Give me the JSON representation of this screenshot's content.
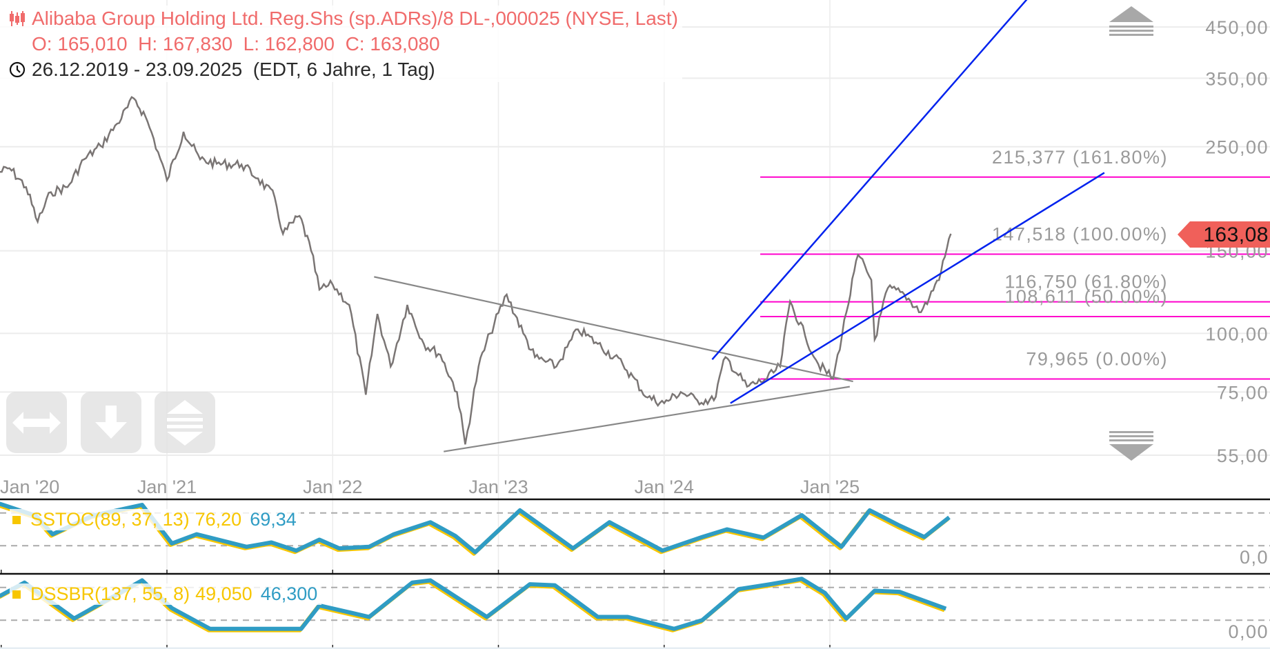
{
  "header": {
    "title": "Alibaba Group Holding Ltd. Reg.Shs (sp.ADRs)/8 DL-,000025 (NYSE, Last)",
    "ohlc": "O: 165,010  H: 167,830  L: 162,800  C: 163,080",
    "range": "26.12.2019 - 23.09.2025  (EDT, 6 Jahre, 1 Tag)",
    "icon": "candlestick-icon",
    "clock_icon": "clock-icon"
  },
  "colors": {
    "accent": "#f06b6b",
    "price": "#7a7574",
    "fib": "#ff00cc",
    "trend": "#0022ee",
    "ind_main": "#2f9cc4",
    "ind_signal": "#f7c600",
    "tag": "#f0605a"
  },
  "last_price_tag": "163,08",
  "nav_buttons": [
    {
      "name": "pan-horizontal",
      "icon": "left-right-arrow-icon"
    },
    {
      "name": "scroll-down",
      "icon": "down-arrow-icon"
    },
    {
      "name": "scale-vertical",
      "icon": "up-down-arrows-icon"
    }
  ],
  "chart_data": {
    "type": "line",
    "title": "Alibaba Group Holding Ltd. Reg.Shs (sp.ADRs)/8 DL-,000025 (NYSE, Last)",
    "y_scale": "log",
    "ylim": [
      55,
      450
    ],
    "y_ticks": [
      450,
      350,
      250,
      150,
      100,
      75,
      55
    ],
    "y_tick_labels": [
      "450,00",
      "350,00",
      "250,00",
      "150,00",
      "100,00",
      "75,00",
      "55,00"
    ],
    "x_ticks": [
      2020,
      2021,
      2022,
      2023,
      2024,
      2025
    ],
    "x_tick_labels": [
      "Jan '20",
      "Jan '21",
      "Jan '22",
      "Jan '23",
      "Jan '24",
      "Jan '25"
    ],
    "grid": true,
    "price_series": [
      [
        2019.98,
        220
      ],
      [
        2020.05,
        225
      ],
      [
        2020.15,
        205
      ],
      [
        2020.22,
        173
      ],
      [
        2020.3,
        200
      ],
      [
        2020.4,
        205
      ],
      [
        2020.5,
        235
      ],
      [
        2020.6,
        251
      ],
      [
        2020.7,
        280
      ],
      [
        2020.8,
        317
      ],
      [
        2020.87,
        290
      ],
      [
        2020.92,
        260
      ],
      [
        2021.0,
        212
      ],
      [
        2021.1,
        269
      ],
      [
        2021.2,
        235
      ],
      [
        2021.3,
        230
      ],
      [
        2021.45,
        229
      ],
      [
        2021.55,
        214
      ],
      [
        2021.65,
        195
      ],
      [
        2021.7,
        163
      ],
      [
        2021.8,
        178
      ],
      [
        2021.87,
        150
      ],
      [
        2021.92,
        124
      ],
      [
        2022.0,
        127
      ],
      [
        2022.1,
        115
      ],
      [
        2022.2,
        74
      ],
      [
        2022.27,
        110
      ],
      [
        2022.35,
        85
      ],
      [
        2022.45,
        115
      ],
      [
        2022.55,
        95
      ],
      [
        2022.65,
        90
      ],
      [
        2022.75,
        75
      ],
      [
        2022.8,
        58
      ],
      [
        2022.88,
        85
      ],
      [
        2022.95,
        100
      ],
      [
        2023.05,
        121
      ],
      [
        2023.15,
        100
      ],
      [
        2023.22,
        89
      ],
      [
        2023.35,
        85
      ],
      [
        2023.48,
        102
      ],
      [
        2023.6,
        95
      ],
      [
        2023.75,
        86
      ],
      [
        2023.9,
        73
      ],
      [
        2024.0,
        71
      ],
      [
        2024.1,
        75
      ],
      [
        2024.2,
        72
      ],
      [
        2024.3,
        72
      ],
      [
        2024.37,
        89
      ],
      [
        2024.5,
        77
      ],
      [
        2024.62,
        80
      ],
      [
        2024.7,
        85
      ],
      [
        2024.76,
        117
      ],
      [
        2024.85,
        99
      ],
      [
        2024.93,
        86
      ],
      [
        2025.02,
        80
      ],
      [
        2025.1,
        111
      ],
      [
        2025.17,
        147
      ],
      [
        2025.25,
        130
      ],
      [
        2025.27,
        97
      ],
      [
        2025.35,
        125
      ],
      [
        2025.45,
        121
      ],
      [
        2025.55,
        111
      ],
      [
        2025.6,
        119
      ],
      [
        2025.67,
        135
      ],
      [
        2025.73,
        163.08
      ]
    ],
    "fib_levels": [
      {
        "value": 215.377,
        "label": "215,377 (161.80%)"
      },
      {
        "value": 147.518,
        "label": "147,518 (100.00%)"
      },
      {
        "value": 116.75,
        "label": "116,750 (61.80%)"
      },
      {
        "value": 108.611,
        "label": "108,611 (50.00%)"
      },
      {
        "value": 79.965,
        "label": "79,965 (0.00%)"
      }
    ],
    "fib_start": 2024.58,
    "trendlines": [
      {
        "name": "triangle-upper",
        "color": "gray",
        "from": [
          2022.25,
          132
        ],
        "to": [
          2025.14,
          79
        ]
      },
      {
        "name": "triangle-lower",
        "color": "gray",
        "from": [
          2022.67,
          56
        ],
        "to": [
          2025.12,
          77
        ]
      },
      {
        "name": "channel-upper",
        "color": "blue",
        "from": [
          2024.29,
          88
        ],
        "to": [
          2026.225,
          533
        ]
      },
      {
        "name": "channel-lower",
        "color": "blue",
        "from": [
          2024.4,
          71
        ],
        "to": [
          2026.656,
          220
        ]
      }
    ],
    "indicators": [
      {
        "name": "SSTOC",
        "label": "SSTOC(89, 37, 13)",
        "value1": "76,20",
        "value2": "69,34",
        "upper": 80,
        "lower": 20,
        "axis_label": "0,0",
        "series": [
          [
            2019.99,
            97
          ],
          [
            2020.21,
            75
          ],
          [
            2020.31,
            41
          ],
          [
            2020.55,
            75
          ],
          [
            2020.85,
            95
          ],
          [
            2021.03,
            24
          ],
          [
            2021.18,
            41
          ],
          [
            2021.48,
            18
          ],
          [
            2021.63,
            26
          ],
          [
            2021.78,
            11
          ],
          [
            2021.92,
            31
          ],
          [
            2022.04,
            15
          ],
          [
            2022.22,
            18
          ],
          [
            2022.37,
            41
          ],
          [
            2022.59,
            63
          ],
          [
            2022.74,
            38
          ],
          [
            2022.86,
            8
          ],
          [
            2023.13,
            85
          ],
          [
            2023.45,
            15
          ],
          [
            2023.67,
            63
          ],
          [
            2023.99,
            11
          ],
          [
            2024.23,
            36
          ],
          [
            2024.38,
            50
          ],
          [
            2024.6,
            35
          ],
          [
            2024.83,
            76
          ],
          [
            2025.07,
            18
          ],
          [
            2025.24,
            85
          ],
          [
            2025.42,
            57
          ],
          [
            2025.57,
            36
          ],
          [
            2025.72,
            72
          ]
        ]
      },
      {
        "name": "DSSBR",
        "label": "DSSBR(137, 55, 8)",
        "value1": "49,050",
        "value2": "46,300",
        "upper": 80,
        "lower": 20,
        "axis_label": "0,00",
        "series": [
          [
            2019.99,
            64
          ],
          [
            2020.14,
            89
          ],
          [
            2020.44,
            23
          ],
          [
            2020.85,
            93
          ],
          [
            2021.03,
            42
          ],
          [
            2021.26,
            4
          ],
          [
            2021.81,
            4
          ],
          [
            2021.92,
            47
          ],
          [
            2022.22,
            26
          ],
          [
            2022.48,
            89
          ],
          [
            2022.59,
            93
          ],
          [
            2022.93,
            26
          ],
          [
            2023.19,
            86
          ],
          [
            2023.34,
            84
          ],
          [
            2023.6,
            26
          ],
          [
            2023.78,
            26
          ],
          [
            2024.06,
            4
          ],
          [
            2024.23,
            20
          ],
          [
            2024.45,
            77
          ],
          [
            2024.64,
            86
          ],
          [
            2024.83,
            96
          ],
          [
            2024.97,
            70
          ],
          [
            2025.1,
            23
          ],
          [
            2025.27,
            74
          ],
          [
            2025.42,
            72
          ],
          [
            2025.7,
            41
          ]
        ]
      }
    ]
  }
}
